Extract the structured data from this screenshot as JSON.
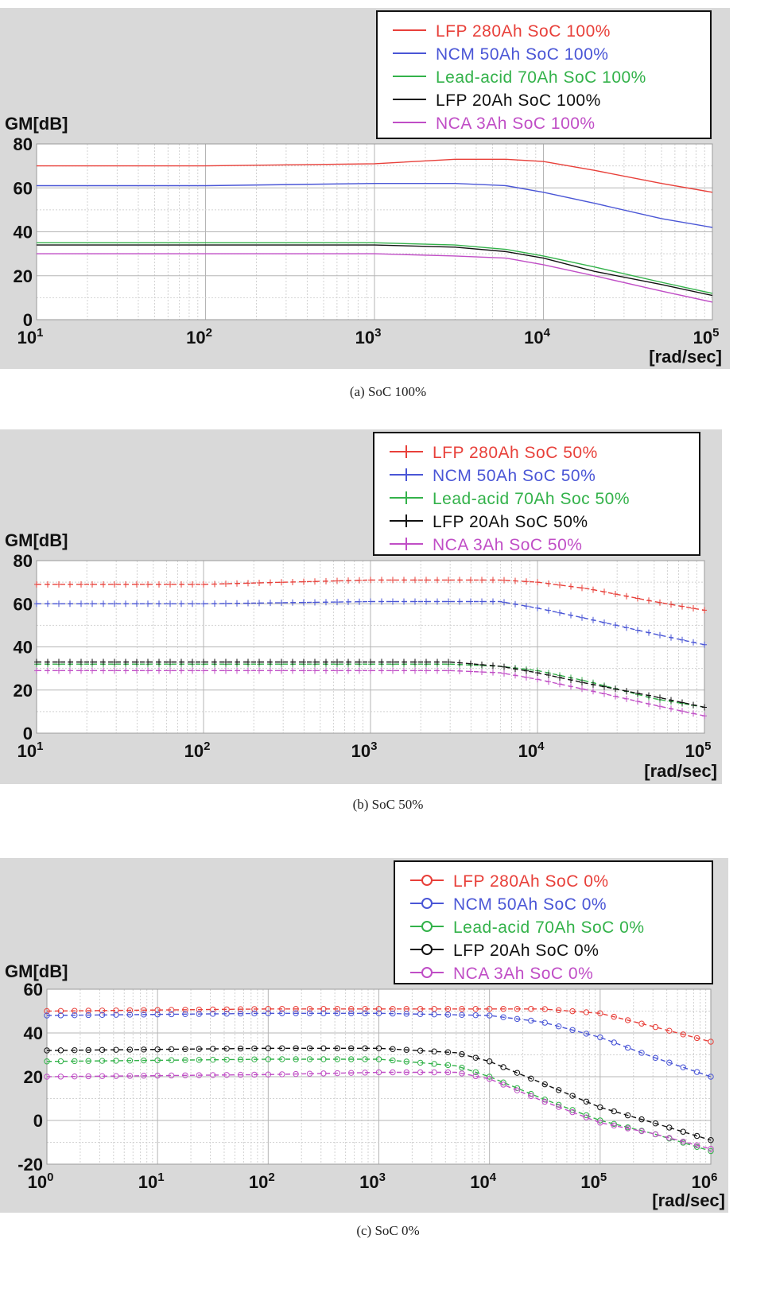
{
  "chart_data": [
    {
      "type": "line",
      "x_scale": "log",
      "ylabel": "GM[dB]",
      "xlabel": "[rad/sec]",
      "xlim": [
        10,
        100000
      ],
      "ylim": [
        0,
        80
      ],
      "yticks": [
        "0",
        "20",
        "40",
        "60",
        "80"
      ],
      "xticks": [
        {
          "base": "10",
          "exp": "1"
        },
        {
          "base": "10",
          "exp": "2"
        },
        {
          "base": "10",
          "exp": "3"
        },
        {
          "base": "10",
          "exp": "4"
        },
        {
          "base": "10",
          "exp": "5"
        }
      ],
      "grid": true,
      "marker": "none",
      "legend_position": "top-right",
      "caption": "(a)  SoC  100%",
      "series": [
        {
          "name": "LFP 280Ah SoC 100%",
          "color": "#e8403a",
          "points": [
            [
              10,
              70
            ],
            [
              100,
              70
            ],
            [
              1000,
              71
            ],
            [
              3000,
              73
            ],
            [
              6000,
              73
            ],
            [
              10000,
              72
            ],
            [
              20000,
              68
            ],
            [
              50000,
              62
            ],
            [
              100000,
              58
            ]
          ]
        },
        {
          "name": "NCM 50Ah SoC 100%",
          "color": "#4a56d6",
          "points": [
            [
              10,
              61
            ],
            [
              100,
              61
            ],
            [
              1000,
              62
            ],
            [
              3000,
              62
            ],
            [
              6000,
              61
            ],
            [
              10000,
              58
            ],
            [
              20000,
              53
            ],
            [
              50000,
              46
            ],
            [
              100000,
              42
            ]
          ]
        },
        {
          "name": "Lead-acid 70Ah SoC 100%",
          "color": "#33b24a",
          "points": [
            [
              10,
              35
            ],
            [
              100,
              35
            ],
            [
              1000,
              35
            ],
            [
              3000,
              34
            ],
            [
              6000,
              32
            ],
            [
              10000,
              29
            ],
            [
              20000,
              24
            ],
            [
              50000,
              17
            ],
            [
              100000,
              12
            ]
          ]
        },
        {
          "name": "LFP 20Ah SoC 100%",
          "color": "#111111",
          "points": [
            [
              10,
              34
            ],
            [
              100,
              34
            ],
            [
              1000,
              34
            ],
            [
              3000,
              33
            ],
            [
              6000,
              31
            ],
            [
              10000,
              28
            ],
            [
              20000,
              22
            ],
            [
              50000,
              16
            ],
            [
              100000,
              11
            ]
          ]
        },
        {
          "name": "NCA 3Ah SoC 100%",
          "color": "#c04ec6",
          "points": [
            [
              10,
              30
            ],
            [
              100,
              30
            ],
            [
              1000,
              30
            ],
            [
              3000,
              29
            ],
            [
              6000,
              28
            ],
            [
              10000,
              25
            ],
            [
              20000,
              20
            ],
            [
              50000,
              13
            ],
            [
              100000,
              8
            ]
          ]
        }
      ]
    },
    {
      "type": "line",
      "x_scale": "log",
      "ylabel": "GM[dB]",
      "xlabel": "[rad/sec]",
      "xlim": [
        10,
        100000
      ],
      "ylim": [
        0,
        80
      ],
      "yticks": [
        "0",
        "20",
        "40",
        "60",
        "80"
      ],
      "xticks": [
        {
          "base": "10",
          "exp": "1"
        },
        {
          "base": "10",
          "exp": "2"
        },
        {
          "base": "10",
          "exp": "3"
        },
        {
          "base": "10",
          "exp": "4"
        },
        {
          "base": "10",
          "exp": "5"
        }
      ],
      "grid": true,
      "marker": "plus",
      "legend_position": "top-right",
      "caption": "(b)  SoC  50%",
      "series": [
        {
          "name": "LFP 280Ah SoC 50%",
          "color": "#e8403a",
          "points": [
            [
              10,
              69
            ],
            [
              100,
              69
            ],
            [
              1000,
              71
            ],
            [
              3000,
              71
            ],
            [
              6000,
              71
            ],
            [
              10000,
              70
            ],
            [
              20000,
              67
            ],
            [
              50000,
              61
            ],
            [
              100000,
              57
            ]
          ]
        },
        {
          "name": "NCM 50Ah SoC 50%",
          "color": "#4a56d6",
          "points": [
            [
              10,
              60
            ],
            [
              100,
              60
            ],
            [
              1000,
              61
            ],
            [
              3000,
              61
            ],
            [
              6000,
              61
            ],
            [
              10000,
              58
            ],
            [
              20000,
              53
            ],
            [
              50000,
              46
            ],
            [
              100000,
              41
            ]
          ]
        },
        {
          "name": "Lead-acid 70Ah Soc 50%",
          "color": "#33b24a",
          "points": [
            [
              10,
              32
            ],
            [
              100,
              32
            ],
            [
              1000,
              32
            ],
            [
              3000,
              32
            ],
            [
              6000,
              31
            ],
            [
              10000,
              29
            ],
            [
              20000,
              24
            ],
            [
              50000,
              16
            ],
            [
              100000,
              12
            ]
          ]
        },
        {
          "name": "LFP 20Ah SoC 50%",
          "color": "#111111",
          "points": [
            [
              10,
              33
            ],
            [
              100,
              33
            ],
            [
              1000,
              33
            ],
            [
              3000,
              33
            ],
            [
              6000,
              31
            ],
            [
              10000,
              28
            ],
            [
              20000,
              23
            ],
            [
              50000,
              17
            ],
            [
              100000,
              12
            ]
          ]
        },
        {
          "name": "NCA 3Ah SoC 50%",
          "color": "#c04ec6",
          "points": [
            [
              10,
              29
            ],
            [
              100,
              29
            ],
            [
              1000,
              29
            ],
            [
              3000,
              29
            ],
            [
              6000,
              28
            ],
            [
              10000,
              25
            ],
            [
              20000,
              20
            ],
            [
              50000,
              13
            ],
            [
              100000,
              8
            ]
          ]
        }
      ]
    },
    {
      "type": "line",
      "x_scale": "log",
      "ylabel": "GM[dB]",
      "xlabel": "[rad/sec]",
      "xlim": [
        1,
        1000000
      ],
      "ylim": [
        -20,
        60
      ],
      "yticks": [
        "-20",
        "0",
        "20",
        "40",
        "60"
      ],
      "xticks": [
        {
          "base": "10",
          "exp": "0"
        },
        {
          "base": "10",
          "exp": "1"
        },
        {
          "base": "10",
          "exp": "2"
        },
        {
          "base": "10",
          "exp": "3"
        },
        {
          "base": "10",
          "exp": "4"
        },
        {
          "base": "10",
          "exp": "5"
        },
        {
          "base": "10",
          "exp": "6"
        }
      ],
      "grid": true,
      "marker": "circle",
      "legend_position": "top-right",
      "caption": "(c)  SoC  0%",
      "series": [
        {
          "name": "LFP 280Ah SoC 0%",
          "color": "#e8403a",
          "points": [
            [
              1,
              50
            ],
            [
              100,
              51
            ],
            [
              10000,
              51
            ],
            [
              30000,
              51
            ],
            [
              100000,
              49
            ],
            [
              300000,
              43
            ],
            [
              1000000,
              36
            ]
          ]
        },
        {
          "name": "NCM 50Ah SoC 0%",
          "color": "#4a56d6",
          "points": [
            [
              1,
              48
            ],
            [
              100,
              49
            ],
            [
              1000,
              49
            ],
            [
              10000,
              48
            ],
            [
              30000,
              45
            ],
            [
              100000,
              38
            ],
            [
              300000,
              29
            ],
            [
              1000000,
              20
            ]
          ]
        },
        {
          "name": "Lead-acid 70Ah SoC 0%",
          "color": "#33b24a",
          "points": [
            [
              1,
              27
            ],
            [
              100,
              28
            ],
            [
              1000,
              28
            ],
            [
              5000,
              25
            ],
            [
              10000,
              20
            ],
            [
              30000,
              10
            ],
            [
              100000,
              0
            ],
            [
              300000,
              -6
            ],
            [
              1000000,
              -14
            ]
          ]
        },
        {
          "name": "LFP 20Ah SoC 0%",
          "color": "#111111",
          "points": [
            [
              1,
              32
            ],
            [
              100,
              33
            ],
            [
              1000,
              33
            ],
            [
              5000,
              31
            ],
            [
              10000,
              27
            ],
            [
              30000,
              17
            ],
            [
              100000,
              6
            ],
            [
              300000,
              -1
            ],
            [
              1000000,
              -9
            ]
          ]
        },
        {
          "name": "NCA 3Ah SoC 0%",
          "color": "#c04ec6",
          "points": [
            [
              1,
              20
            ],
            [
              100,
              21
            ],
            [
              1000,
              22
            ],
            [
              5000,
              22
            ],
            [
              10000,
              19
            ],
            [
              30000,
              9
            ],
            [
              100000,
              -1
            ],
            [
              300000,
              -6
            ],
            [
              1000000,
              -13
            ]
          ]
        }
      ]
    }
  ]
}
